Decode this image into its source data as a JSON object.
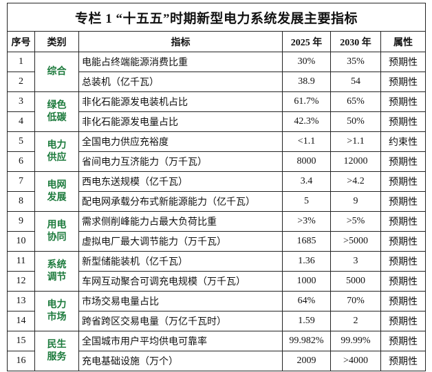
{
  "title": "专栏 1 “十五五”时期新型电力系统发展主要指标",
  "headers": [
    "序号",
    "类别",
    "指标",
    "2025 年",
    "2030 年",
    "属性"
  ],
  "groups": [
    {
      "category": "综合",
      "rows": [
        {
          "no": "1",
          "indicator": "电能占终端能源消费比重",
          "v2025": "30%",
          "v2030": "35%",
          "attr": "预期性"
        },
        {
          "no": "2",
          "indicator": "总装机（亿千瓦）",
          "v2025": "38.9",
          "v2030": "54",
          "attr": "预期性"
        }
      ]
    },
    {
      "category": "绿色低碳",
      "rows": [
        {
          "no": "3",
          "indicator": "非化石能源发电装机占比",
          "v2025": "61.7%",
          "v2030": "65%",
          "attr": "预期性"
        },
        {
          "no": "4",
          "indicator": "非化石能源发电量占比",
          "v2025": "42.3%",
          "v2030": "50%",
          "attr": "预期性"
        }
      ]
    },
    {
      "category": "电力供应",
      "rows": [
        {
          "no": "5",
          "indicator": "全国电力供应充裕度",
          "v2025": "<1.1",
          "v2030": ">1.1",
          "attr": "约束性"
        },
        {
          "no": "6",
          "indicator": "省间电力互济能力（万千瓦）",
          "v2025": "8000",
          "v2030": "12000",
          "attr": "预期性"
        }
      ]
    },
    {
      "category": "电网发展",
      "rows": [
        {
          "no": "7",
          "indicator": "西电东送规模（亿千瓦）",
          "v2025": "3.4",
          "v2030": ">4.2",
          "attr": "预期性"
        },
        {
          "no": "8",
          "indicator": "配电网承载分布式新能源能力（亿千瓦）",
          "v2025": "5",
          "v2030": "9",
          "attr": "预期性"
        }
      ]
    },
    {
      "category": "用电协同",
      "rows": [
        {
          "no": "9",
          "indicator": "需求侧削峰能力占最大负荷比重",
          "v2025": ">3%",
          "v2030": ">5%",
          "attr": "预期性"
        },
        {
          "no": "10",
          "indicator": "虚拟电厂最大调节能力（万千瓦）",
          "v2025": "1685",
          "v2030": ">5000",
          "attr": "预期性"
        }
      ]
    },
    {
      "category": "系统调节",
      "rows": [
        {
          "no": "11",
          "indicator": "新型储能装机（亿千瓦）",
          "v2025": "1.36",
          "v2030": "3",
          "attr": "预期性"
        },
        {
          "no": "12",
          "indicator": "车网互动聚合可调充电规模（万千瓦）",
          "v2025": "1000",
          "v2030": "5000",
          "attr": "预期性"
        }
      ]
    },
    {
      "category": "电力市场",
      "rows": [
        {
          "no": "13",
          "indicator": "市场交易电量占比",
          "v2025": "64%",
          "v2030": "70%",
          "attr": "预期性"
        },
        {
          "no": "14",
          "indicator": "跨省跨区交易电量（万亿千瓦时）",
          "v2025": "1.59",
          "v2030": "2",
          "attr": "预期性"
        }
      ]
    },
    {
      "category": "民生服务",
      "rows": [
        {
          "no": "15",
          "indicator": "全国城市用户平均供电可靠率",
          "v2025": "99.982%",
          "v2030": "99.99%",
          "attr": "预期性"
        },
        {
          "no": "16",
          "indicator": "充电基础设施（万个）",
          "v2025": "2009",
          "v2030": ">4000",
          "attr": "预期性"
        }
      ]
    }
  ]
}
